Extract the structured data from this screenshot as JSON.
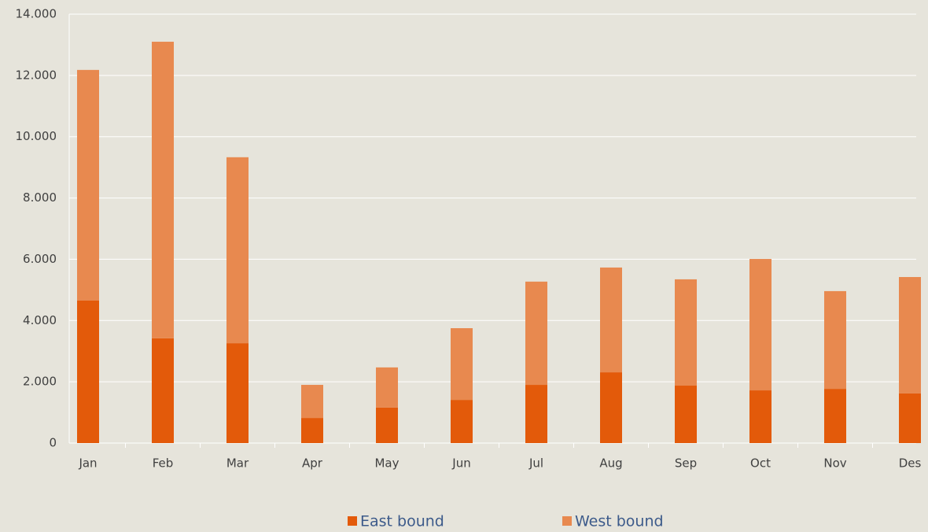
{
  "chart_data": {
    "type": "stacked_bar",
    "categories": [
      "Jan",
      "Feb",
      "Mar",
      "Apr",
      "May",
      "Jun",
      "Jul",
      "Aug",
      "Sep",
      "Oct",
      "Nov",
      "Des"
    ],
    "series": [
      {
        "name": "East bound",
        "color": "#e35a0a",
        "values": [
          4650,
          3420,
          3260,
          820,
          1160,
          1410,
          1900,
          2310,
          1875,
          1720,
          1770,
          1620
        ]
      },
      {
        "name": "West bound",
        "color": "#e8894f",
        "values": [
          7530,
          9680,
          6070,
          1080,
          1310,
          2340,
          3370,
          3420,
          3470,
          4290,
          3190,
          3800
        ]
      }
    ],
    "ylim": [
      0,
      14000
    ],
    "yticks": [
      0,
      {
        "value": 2000,
        "label": "2.000"
      },
      {
        "value": 4000,
        "label": "4.000"
      },
      {
        "value": 6000,
        "label": "6.000"
      },
      {
        "value": 8000,
        "label": "8.000"
      },
      {
        "value": 10000,
        "label": "10.000"
      },
      {
        "value": 12000,
        "label": "12.000"
      },
      {
        "value": 14000,
        "label": "14.000"
      }
    ],
    "grid": true,
    "legend": "bottom"
  }
}
